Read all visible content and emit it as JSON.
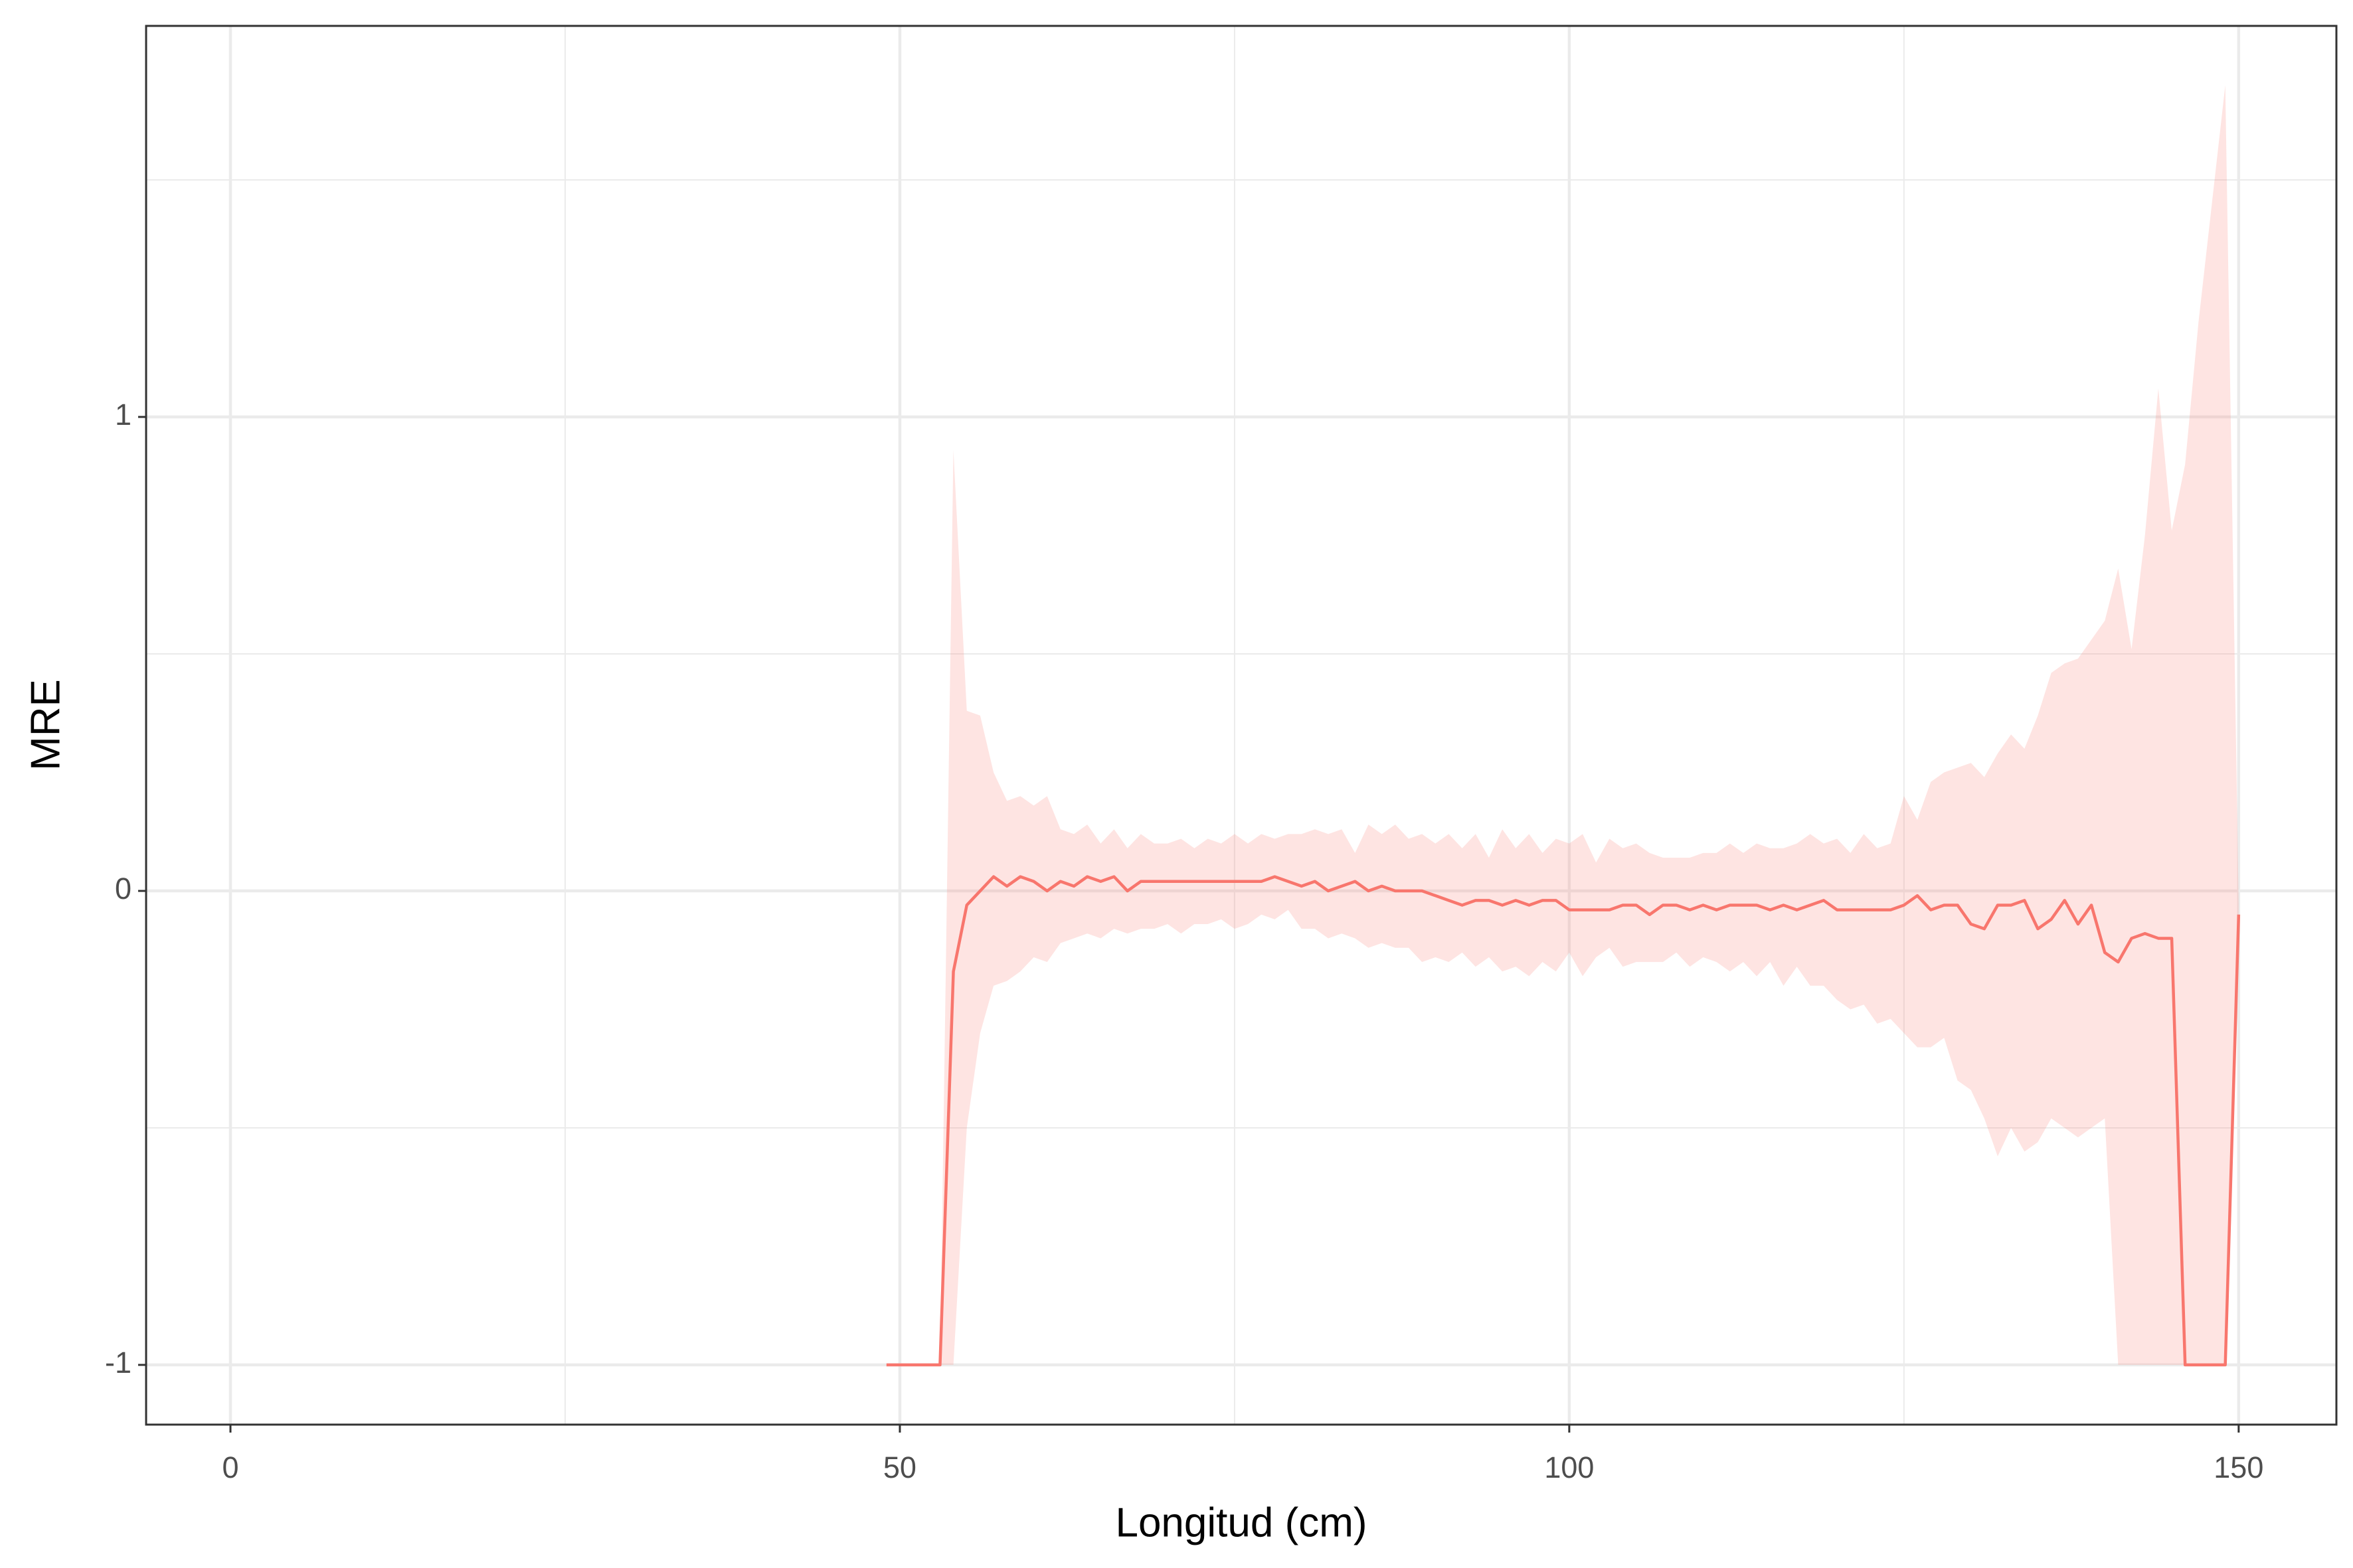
{
  "chart_data": {
    "type": "line",
    "x_label": "Longitud (cm)",
    "y_label": "MRE",
    "x": [
      49,
      50,
      51,
      52,
      53,
      54,
      55,
      56,
      57,
      58,
      59,
      60,
      61,
      62,
      63,
      64,
      65,
      66,
      67,
      68,
      69,
      70,
      71,
      72,
      73,
      74,
      75,
      76,
      77,
      78,
      79,
      80,
      81,
      82,
      83,
      84,
      85,
      86,
      87,
      88,
      89,
      90,
      91,
      92,
      93,
      94,
      95,
      96,
      97,
      98,
      99,
      100,
      101,
      102,
      103,
      104,
      105,
      106,
      107,
      108,
      109,
      110,
      111,
      112,
      113,
      114,
      115,
      116,
      117,
      118,
      119,
      120,
      121,
      122,
      123,
      124,
      125,
      126,
      127,
      128,
      129,
      130,
      131,
      132,
      133,
      134,
      135,
      136,
      137,
      138,
      139,
      140,
      141,
      142,
      143,
      144,
      145,
      146,
      147,
      148,
      149,
      150
    ],
    "series": [
      {
        "color": "#F8766D",
        "band_opacity": 0.2,
        "values": [
          -1,
          -1,
          -1,
          -1,
          -1,
          -0.17,
          -0.03,
          0,
          0.03,
          0.01,
          0.03,
          0.02,
          0,
          0.02,
          0.01,
          0.03,
          0.02,
          0.03,
          0,
          0.02,
          0.02,
          0.02,
          0.02,
          0.02,
          0.02,
          0.02,
          0.02,
          0.02,
          0.02,
          0.03,
          0.02,
          0.01,
          0.02,
          0,
          0.01,
          0.02,
          0,
          0.01,
          0,
          0,
          0,
          -0.01,
          -0.02,
          -0.03,
          -0.02,
          -0.02,
          -0.03,
          -0.02,
          -0.03,
          -0.02,
          -0.02,
          -0.04,
          -0.04,
          -0.04,
          -0.04,
          -0.03,
          -0.03,
          -0.05,
          -0.03,
          -0.03,
          -0.04,
          -0.03,
          -0.04,
          -0.03,
          -0.03,
          -0.03,
          -0.04,
          -0.03,
          -0.04,
          -0.03,
          -0.02,
          -0.04,
          -0.04,
          -0.04,
          -0.04,
          -0.04,
          -0.03,
          -0.01,
          -0.04,
          -0.03,
          -0.03,
          -0.07,
          -0.08,
          -0.03,
          -0.03,
          -0.02,
          -0.08,
          -0.06,
          -0.02,
          -0.07,
          -0.03,
          -0.13,
          -0.15,
          -0.1,
          -0.09,
          -0.1,
          -0.1,
          -1,
          -1,
          -1,
          -1,
          -0.05
        ],
        "upper": [
          -1,
          -1,
          -1,
          -1,
          -1,
          0.93,
          0.38,
          0.37,
          0.25,
          0.19,
          0.2,
          0.18,
          0.2,
          0.13,
          0.12,
          0.14,
          0.1,
          0.13,
          0.09,
          0.12,
          0.1,
          0.1,
          0.11,
          0.09,
          0.11,
          0.1,
          0.12,
          0.1,
          0.12,
          0.11,
          0.12,
          0.12,
          0.13,
          0.12,
          0.13,
          0.08,
          0.14,
          0.12,
          0.14,
          0.11,
          0.12,
          0.1,
          0.12,
          0.09,
          0.12,
          0.07,
          0.13,
          0.09,
          0.12,
          0.08,
          0.11,
          0.1,
          0.12,
          0.06,
          0.11,
          0.09,
          0.1,
          0.08,
          0.07,
          0.07,
          0.07,
          0.08,
          0.08,
          0.1,
          0.08,
          0.1,
          0.09,
          0.09,
          0.1,
          0.12,
          0.1,
          0.11,
          0.08,
          0.12,
          0.09,
          0.1,
          0.2,
          0.15,
          0.23,
          0.25,
          0.26,
          0.27,
          0.24,
          0.29,
          0.33,
          0.3,
          0.37,
          0.46,
          0.48,
          0.49,
          0.53,
          0.57,
          0.68,
          0.51,
          0.75,
          1.06,
          0.76,
          0.9,
          1.2,
          1.45,
          1.7,
          -0.03
        ],
        "lower": [
          -1,
          -1,
          -1,
          -1,
          -1,
          -1,
          -0.5,
          -0.3,
          -0.2,
          -0.19,
          -0.17,
          -0.14,
          -0.15,
          -0.11,
          -0.1,
          -0.09,
          -0.1,
          -0.08,
          -0.09,
          -0.08,
          -0.08,
          -0.07,
          -0.09,
          -0.07,
          -0.07,
          -0.06,
          -0.08,
          -0.07,
          -0.05,
          -0.06,
          -0.04,
          -0.08,
          -0.08,
          -0.1,
          -0.09,
          -0.1,
          -0.12,
          -0.11,
          -0.12,
          -0.12,
          -0.15,
          -0.14,
          -0.15,
          -0.13,
          -0.16,
          -0.14,
          -0.17,
          -0.16,
          -0.18,
          -0.15,
          -0.17,
          -0.13,
          -0.18,
          -0.14,
          -0.12,
          -0.16,
          -0.15,
          -0.15,
          -0.15,
          -0.13,
          -0.16,
          -0.14,
          -0.15,
          -0.17,
          -0.15,
          -0.18,
          -0.15,
          -0.2,
          -0.16,
          -0.2,
          -0.2,
          -0.23,
          -0.25,
          -0.24,
          -0.28,
          -0.27,
          -0.3,
          -0.33,
          -0.33,
          -0.31,
          -0.4,
          -0.42,
          -0.48,
          -0.56,
          -0.5,
          -0.55,
          -0.53,
          -0.48,
          -0.5,
          -0.52,
          -0.5,
          -0.48,
          -1,
          -1,
          -1,
          -1,
          -1,
          -1,
          -1,
          -1,
          -1,
          -0.07
        ]
      }
    ],
    "xlim": [
      -6.3,
      157.3
    ],
    "ylim": [
      -1.126,
      1.825
    ],
    "xticks": [
      0,
      50,
      100,
      150
    ],
    "yticks": [
      -1,
      0,
      1
    ],
    "x_minor_ticks": [
      25,
      75,
      125
    ],
    "y_minor_ticks": [
      -0.5,
      0.5,
      1.5
    ],
    "grid": true
  }
}
